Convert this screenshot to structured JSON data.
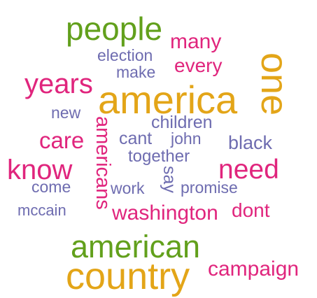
{
  "word_cloud": {
    "colors": {
      "green": "#62a01c",
      "pink": "#e0257d",
      "purple": "#6e6cb0",
      "gold": "#e3a518",
      "background": "#ffffff"
    },
    "words": {
      "people": {
        "text": "people",
        "color": "#62a01c"
      },
      "many": {
        "text": "many",
        "color": "#e0257d"
      },
      "election": {
        "text": "election",
        "color": "#6e6cb0"
      },
      "one": {
        "text": "one",
        "color": "#e3a518"
      },
      "every": {
        "text": "every",
        "color": "#e0257d"
      },
      "make": {
        "text": "make",
        "color": "#6e6cb0"
      },
      "years": {
        "text": "years",
        "color": "#e0257d"
      },
      "america": {
        "text": "america",
        "color": "#e3a518"
      },
      "new": {
        "text": "new",
        "color": "#6e6cb0"
      },
      "children": {
        "text": "children",
        "color": "#6e6cb0"
      },
      "americans": {
        "text": "americans",
        "color": "#e0257d"
      },
      "care": {
        "text": "care",
        "color": "#e0257d"
      },
      "cant": {
        "text": "cant",
        "color": "#6e6cb0"
      },
      "john": {
        "text": "john",
        "color": "#6e6cb0"
      },
      "black": {
        "text": "black",
        "color": "#6e6cb0"
      },
      "together": {
        "text": "together",
        "color": "#6e6cb0"
      },
      "know": {
        "text": "know",
        "color": "#e0257d"
      },
      "need": {
        "text": "need",
        "color": "#e0257d"
      },
      "say": {
        "text": "say",
        "color": "#6e6cb0"
      },
      "come": {
        "text": "come",
        "color": "#6e6cb0"
      },
      "work": {
        "text": "work",
        "color": "#6e6cb0"
      },
      "promise": {
        "text": "promise",
        "color": "#6e6cb0"
      },
      "mccain": {
        "text": "mccain",
        "color": "#6e6cb0"
      },
      "washington": {
        "text": "washington",
        "color": "#e0257d"
      },
      "dont": {
        "text": "dont",
        "color": "#e0257d"
      },
      "american": {
        "text": "american",
        "color": "#62a01c"
      },
      "country": {
        "text": "country",
        "color": "#e3a518"
      },
      "campaign": {
        "text": "campaign",
        "color": "#e0257d"
      }
    }
  }
}
